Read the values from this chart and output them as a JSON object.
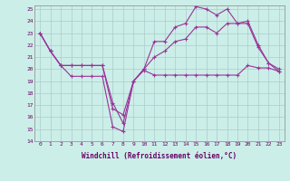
{
  "xlabel": "Windchill (Refroidissement éolien,°C)",
  "bg_color": "#cceee8",
  "grid_color": "#aacccc",
  "line_color": "#993399",
  "xlim": [
    -0.5,
    23.5
  ],
  "ylim": [
    14,
    25.3
  ],
  "yticks": [
    14,
    15,
    16,
    17,
    18,
    19,
    20,
    21,
    22,
    23,
    24,
    25
  ],
  "xticks": [
    0,
    1,
    2,
    3,
    4,
    5,
    6,
    7,
    8,
    9,
    10,
    11,
    12,
    13,
    14,
    15,
    16,
    17,
    18,
    19,
    20,
    21,
    22,
    23
  ],
  "series1_x": [
    0,
    1,
    2,
    3,
    4,
    5,
    6,
    7,
    8,
    9,
    10,
    11,
    12,
    13,
    14,
    15,
    16,
    17,
    18,
    19,
    20,
    21,
    22,
    23
  ],
  "series1_y": [
    23,
    21.5,
    20.3,
    19.4,
    19.4,
    19.4,
    19.4,
    15.2,
    14.8,
    19.0,
    19.9,
    19.5,
    19.5,
    19.5,
    19.5,
    19.5,
    19.5,
    19.5,
    19.5,
    19.5,
    20.3,
    20.1,
    20.1,
    19.8
  ],
  "series2_x": [
    0,
    1,
    2,
    3,
    4,
    5,
    6,
    7,
    8,
    9,
    10,
    11,
    12,
    13,
    14,
    15,
    16,
    17,
    18,
    19,
    20,
    21,
    22,
    23
  ],
  "series2_y": [
    23,
    21.5,
    20.3,
    20.3,
    20.3,
    20.3,
    20.3,
    16.7,
    16.2,
    19.0,
    20.0,
    21.0,
    21.5,
    22.3,
    22.5,
    23.5,
    23.5,
    23.0,
    23.8,
    23.8,
    23.8,
    21.8,
    20.5,
    20.0
  ],
  "series3_x": [
    0,
    1,
    2,
    3,
    4,
    5,
    6,
    7,
    8,
    9,
    10,
    11,
    12,
    13,
    14,
    15,
    16,
    17,
    18,
    19,
    20,
    21,
    22,
    23
  ],
  "series3_y": [
    23,
    21.5,
    20.3,
    20.3,
    20.3,
    20.3,
    20.3,
    17.2,
    15.5,
    19.0,
    20.0,
    22.3,
    22.3,
    23.5,
    23.8,
    25.2,
    25.0,
    24.5,
    25.0,
    23.8,
    24.0,
    22.0,
    20.5,
    19.8
  ]
}
